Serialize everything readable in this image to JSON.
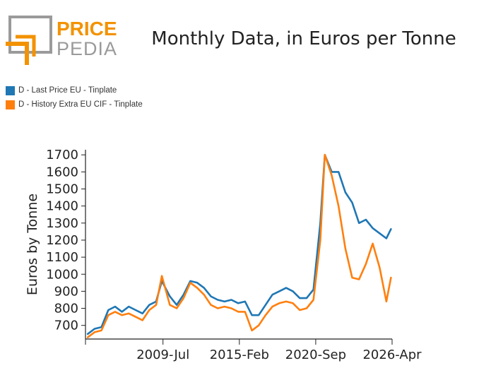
{
  "brand": {
    "logo_top": "PRICE",
    "logo_bottom": "PEDIA",
    "orange": "#f39200",
    "gray": "#9a9a9a"
  },
  "chart_data": {
    "type": "line",
    "title": "Monthly Data, in Euros per Tonne",
    "xlabel": "",
    "ylabel": "Euros by Tonne",
    "x_ticks": [
      "2009-Jul",
      "2015-Feb",
      "2020-Sep",
      "2026-Apr"
    ],
    "x_range": [
      "2003-Nov",
      "2026-Apr"
    ],
    "y_ticks": [
      700,
      800,
      900,
      1000,
      1100,
      1200,
      1300,
      1400,
      1500,
      1600,
      1700
    ],
    "ylim": [
      620,
      1730
    ],
    "grid": false,
    "legend_position": "top-left",
    "series": [
      {
        "name": "D - Last Price EU - Tinplate",
        "color": "#1f77b4",
        "points": [
          [
            "2004-Jan",
            650
          ],
          [
            "2004-Jul",
            680
          ],
          [
            "2005-Jan",
            690
          ],
          [
            "2005-Jul",
            790
          ],
          [
            "2006-Jan",
            810
          ],
          [
            "2006-Jul",
            780
          ],
          [
            "2007-Jan",
            810
          ],
          [
            "2007-Jul",
            790
          ],
          [
            "2008-Jan",
            770
          ],
          [
            "2008-Jul",
            820
          ],
          [
            "2009-Jan",
            840
          ],
          [
            "2009-Jun",
            960
          ],
          [
            "2010-Jan",
            870
          ],
          [
            "2010-Jul",
            820
          ],
          [
            "2011-Jan",
            880
          ],
          [
            "2011-Jul",
            960
          ],
          [
            "2012-Jan",
            950
          ],
          [
            "2012-Jul",
            920
          ],
          [
            "2013-Jan",
            870
          ],
          [
            "2013-Jul",
            850
          ],
          [
            "2014-Jan",
            840
          ],
          [
            "2014-Jul",
            850
          ],
          [
            "2015-Jan",
            830
          ],
          [
            "2015-Jul",
            840
          ],
          [
            "2016-Jan",
            760
          ],
          [
            "2016-Jul",
            760
          ],
          [
            "2017-Jan",
            820
          ],
          [
            "2017-Jul",
            880
          ],
          [
            "2018-Jan",
            900
          ],
          [
            "2018-Jul",
            920
          ],
          [
            "2019-Jan",
            900
          ],
          [
            "2019-Jul",
            860
          ],
          [
            "2020-Jan",
            860
          ],
          [
            "2020-Jul",
            910
          ],
          [
            "2021-Jan",
            1300
          ],
          [
            "2021-May",
            1700
          ],
          [
            "2021-Nov",
            1600
          ],
          [
            "2022-May",
            1600
          ],
          [
            "2022-Nov",
            1480
          ],
          [
            "2023-May",
            1420
          ],
          [
            "2023-Nov",
            1300
          ],
          [
            "2024-May",
            1320
          ],
          [
            "2024-Nov",
            1270
          ],
          [
            "2025-May",
            1240
          ],
          [
            "2025-Nov",
            1210
          ],
          [
            "2026-Mar",
            1265
          ]
        ]
      },
      {
        "name": "D - History Extra EU CIF - Tinplate",
        "color": "#ff7f0e",
        "points": [
          [
            "2004-Jan",
            630
          ],
          [
            "2004-Jul",
            660
          ],
          [
            "2005-Jan",
            670
          ],
          [
            "2005-Jul",
            760
          ],
          [
            "2006-Jan",
            780
          ],
          [
            "2006-Jul",
            760
          ],
          [
            "2007-Jan",
            770
          ],
          [
            "2007-Jul",
            750
          ],
          [
            "2008-Jan",
            730
          ],
          [
            "2008-Jul",
            790
          ],
          [
            "2009-Jan",
            820
          ],
          [
            "2009-Jun",
            990
          ],
          [
            "2010-Jan",
            820
          ],
          [
            "2010-Jul",
            800
          ],
          [
            "2011-Jan",
            860
          ],
          [
            "2011-Jul",
            950
          ],
          [
            "2012-Jan",
            920
          ],
          [
            "2012-Jul",
            880
          ],
          [
            "2013-Jan",
            820
          ],
          [
            "2013-Jul",
            800
          ],
          [
            "2014-Jan",
            810
          ],
          [
            "2014-Jul",
            800
          ],
          [
            "2015-Jan",
            780
          ],
          [
            "2015-Jul",
            780
          ],
          [
            "2016-Jan",
            670
          ],
          [
            "2016-Jul",
            700
          ],
          [
            "2017-Jan",
            760
          ],
          [
            "2017-Jul",
            810
          ],
          [
            "2018-Jan",
            830
          ],
          [
            "2018-Jul",
            840
          ],
          [
            "2019-Jan",
            830
          ],
          [
            "2019-Jul",
            790
          ],
          [
            "2020-Jan",
            800
          ],
          [
            "2020-Jul",
            850
          ],
          [
            "2021-Jan",
            1200
          ],
          [
            "2021-May",
            1700
          ],
          [
            "2021-Nov",
            1580
          ],
          [
            "2022-May",
            1400
          ],
          [
            "2022-Nov",
            1150
          ],
          [
            "2023-May",
            980
          ],
          [
            "2023-Nov",
            970
          ],
          [
            "2024-May",
            1060
          ],
          [
            "2024-Nov",
            1180
          ],
          [
            "2025-May",
            1040
          ],
          [
            "2025-Nov",
            840
          ],
          [
            "2026-Mar",
            980
          ]
        ]
      }
    ]
  }
}
